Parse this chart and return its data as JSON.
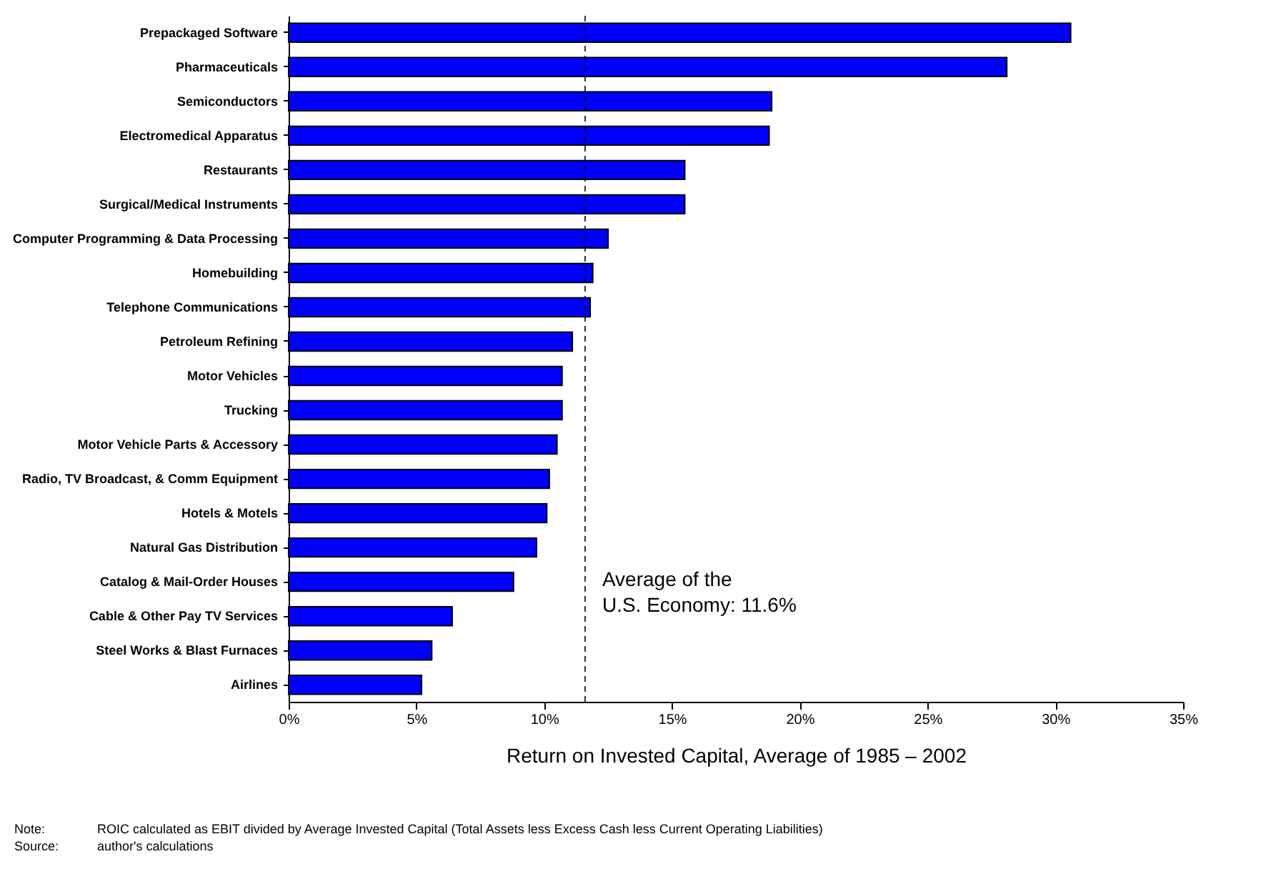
{
  "chart_data": {
    "type": "bar",
    "orientation": "horizontal",
    "categories": [
      "Prepackaged Software",
      "Pharmaceuticals",
      "Semiconductors",
      "Electromedical Apparatus",
      "Restaurants",
      "Surgical/Medical Instruments",
      "Computer Programming & Data Processing",
      "Homebuilding",
      "Telephone Communications",
      "Petroleum Refining",
      "Motor Vehicles",
      "Trucking",
      "Motor Vehicle Parts & Accessory",
      "Radio, TV Broadcast, & Comm Equipment",
      "Hotels & Motels",
      "Natural Gas Distribution",
      "Catalog & Mail-Order Houses",
      "Cable & Other Pay TV Services",
      "Steel Works & Blast Furnaces",
      "Airlines"
    ],
    "values": [
      30.6,
      28.1,
      18.9,
      18.8,
      15.5,
      15.5,
      12.5,
      11.9,
      11.8,
      11.1,
      10.7,
      10.7,
      10.5,
      10.2,
      10.1,
      9.7,
      8.8,
      6.4,
      5.6,
      5.2
    ],
    "color": "#0000ff",
    "xlim": [
      0,
      35
    ],
    "xticks": [
      {
        "value": 0,
        "label": "0%"
      },
      {
        "value": 5,
        "label": "5%"
      },
      {
        "value": 10,
        "label": "10%"
      },
      {
        "value": 15,
        "label": "15%"
      },
      {
        "value": 20,
        "label": "20%"
      },
      {
        "value": 25,
        "label": "25%"
      },
      {
        "value": 30,
        "label": "30%"
      },
      {
        "value": 35,
        "label": "35%"
      }
    ],
    "xlabel": "Return on Invested Capital, Average of 1985 – 2002",
    "ref_lines": [
      {
        "axis": "x",
        "value": 11.6,
        "label": "Average of the\nU.S. Economy: 11.6%",
        "line_style": "dashed"
      }
    ],
    "annotations": [
      "Note:\tROIC calculated as EBIT divided by Average Invested Capital (Total Assets less Excess Cash less Current Operating Liabilities)",
      "Source:\tauthor's calculations"
    ],
    "grid": false
  }
}
